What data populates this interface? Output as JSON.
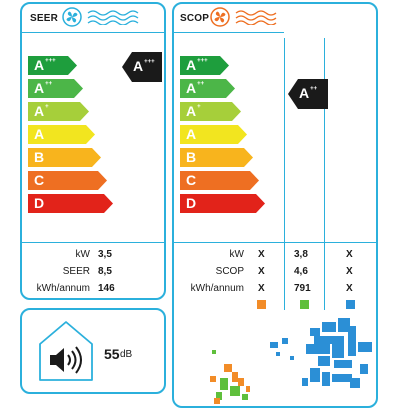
{
  "seer": {
    "title": "SEER",
    "classes": [
      {
        "letter": "A",
        "sup": "+++",
        "color": "#1e9e3d"
      },
      {
        "letter": "A",
        "sup": "++",
        "color": "#4cb648"
      },
      {
        "letter": "A",
        "sup": "+",
        "color": "#a6cf3a"
      },
      {
        "letter": "A",
        "sup": "",
        "color": "#f2e51f"
      },
      {
        "letter": "B",
        "sup": "",
        "color": "#f8b41d"
      },
      {
        "letter": "C",
        "sup": "",
        "color": "#ee6f22"
      },
      {
        "letter": "D",
        "sup": "",
        "color": "#e2231a"
      }
    ],
    "rating": {
      "letter": "A",
      "sup": "+++"
    },
    "rows": [
      {
        "label": "kW",
        "value": "3,5"
      },
      {
        "label": "SEER",
        "value": "8,5"
      },
      {
        "label": "kWh/annum",
        "value": "146"
      }
    ]
  },
  "scop": {
    "title": "SCOP",
    "classes": [
      {
        "letter": "A",
        "sup": "+++",
        "color": "#1e9e3d"
      },
      {
        "letter": "A",
        "sup": "++",
        "color": "#4cb648"
      },
      {
        "letter": "A",
        "sup": "+",
        "color": "#a6cf3a"
      },
      {
        "letter": "A",
        "sup": "",
        "color": "#f2e51f"
      },
      {
        "letter": "B",
        "sup": "",
        "color": "#f8b41d"
      },
      {
        "letter": "C",
        "sup": "",
        "color": "#ee6f22"
      },
      {
        "letter": "D",
        "sup": "",
        "color": "#e2231a"
      }
    ],
    "rating": {
      "letter": "A",
      "sup": "++"
    },
    "rows": [
      {
        "label": "kW",
        "cols": [
          "X",
          "3,8",
          "X"
        ]
      },
      {
        "label": "SCOP",
        "cols": [
          "X",
          "4,6",
          "X"
        ]
      },
      {
        "label": "kWh/annum",
        "cols": [
          "X",
          "791",
          "X"
        ]
      }
    ],
    "zone_colors": [
      "#f28c28",
      "#5fbf3c",
      "#2b8fd6"
    ]
  },
  "noise": {
    "value": "55",
    "unit": "dB"
  },
  "colors": {
    "border": "#2bb0dc",
    "marker": "#1a1a1a",
    "cool_icon": "#2bb0dc",
    "heat_icon": "#ee6f22"
  }
}
